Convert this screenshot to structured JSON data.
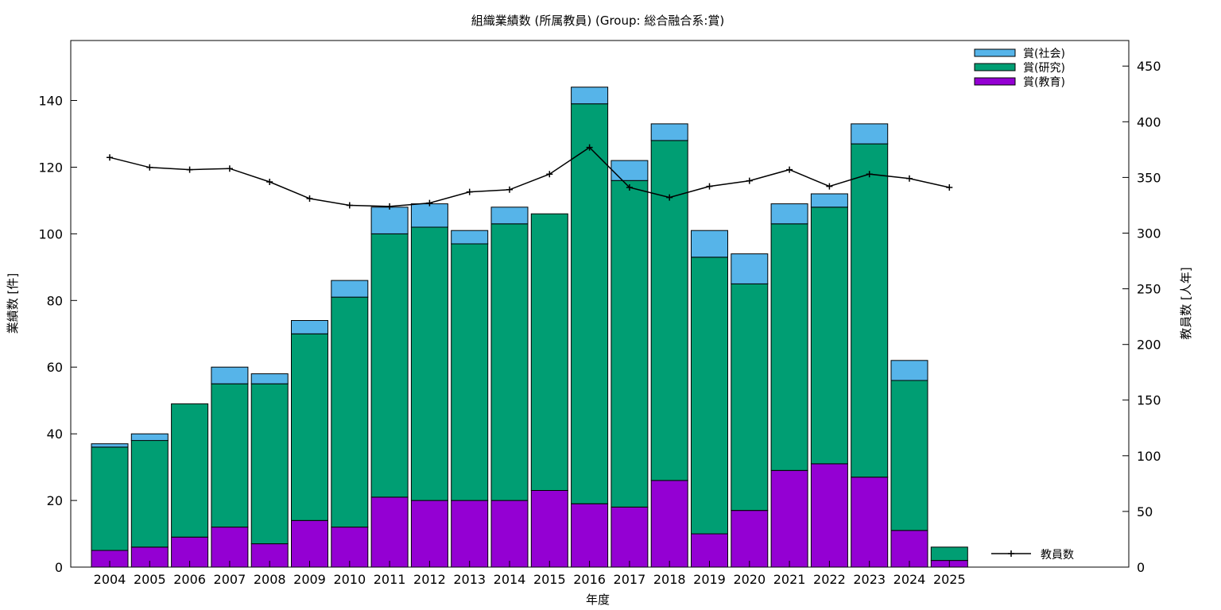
{
  "chart_data": {
    "type": "bar",
    "stacked": true,
    "title": "組織業績数 (所属教員) (Group: 総合融合系:賞)",
    "xlabel": "年度",
    "ylabel": "業績数 [件]",
    "y2label": "教員数 [人年]",
    "categories": [
      "2004",
      "2005",
      "2006",
      "2007",
      "2008",
      "2009",
      "2010",
      "2011",
      "2012",
      "2013",
      "2014",
      "2015",
      "2016",
      "2017",
      "2018",
      "2019",
      "2020",
      "2021",
      "2022",
      "2023",
      "2024",
      "2025"
    ],
    "ylim": [
      0,
      158
    ],
    "y2lim": [
      0,
      473
    ],
    "yticks": [
      0,
      20,
      40,
      60,
      80,
      100,
      120,
      140
    ],
    "y2ticks": [
      0,
      50,
      100,
      150,
      200,
      250,
      300,
      350,
      400,
      450
    ],
    "grid": false,
    "legend_position": "top-right",
    "series": [
      {
        "name": "賞(教育)",
        "color": "#9400d3",
        "values": [
          5,
          6,
          9,
          12,
          7,
          14,
          12,
          21,
          20,
          20,
          20,
          23,
          19,
          18,
          26,
          10,
          17,
          29,
          31,
          27,
          11,
          2
        ]
      },
      {
        "name": "賞(研究)",
        "color": "#009e73",
        "values": [
          31,
          32,
          40,
          43,
          48,
          56,
          69,
          79,
          82,
          77,
          83,
          83,
          120,
          98,
          102,
          83,
          68,
          74,
          77,
          100,
          45,
          4
        ]
      },
      {
        "name": "賞(社会)",
        "color": "#56b4e9",
        "values": [
          1,
          2,
          0,
          5,
          3,
          4,
          5,
          8,
          7,
          4,
          5,
          0,
          5,
          6,
          5,
          8,
          9,
          6,
          4,
          6,
          6,
          0
        ]
      }
    ],
    "line_series": {
      "name": "教員数",
      "color": "#000000",
      "axis": "right",
      "values": [
        368,
        359,
        357,
        358,
        346,
        331,
        325,
        324,
        327,
        337,
        339,
        353,
        377,
        341,
        332,
        342,
        347,
        357,
        342,
        353,
        349,
        341
      ]
    }
  }
}
